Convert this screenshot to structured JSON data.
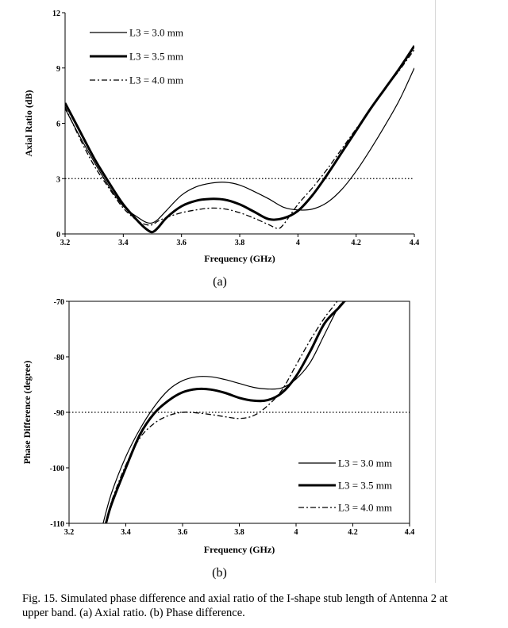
{
  "caption": "Fig. 15.   Simulated phase difference and axial ratio of the I-shape stub length of Antenna 2 at upper band. (a) Axial ratio. (b) Phase difference.",
  "chart_data": [
    {
      "type": "line",
      "sublabel": "(a)",
      "xlabel": "Frequency (GHz)",
      "ylabel": "Axial Ratio (dB)",
      "xlim": [
        3.2,
        4.4
      ],
      "ylim": [
        0,
        12
      ],
      "xticks": [
        3.2,
        3.4,
        3.6,
        3.8,
        4,
        4.2,
        4.4
      ],
      "xtick_labels": [
        "3.2",
        "3.4",
        "3.6",
        "3.8",
        "4",
        "4.2",
        "4.4"
      ],
      "yticks": [
        0,
        3,
        6,
        9,
        12
      ],
      "ytick_labels": [
        "0",
        "3",
        "6",
        "9",
        "12"
      ],
      "reference_line": {
        "y": 3,
        "style": "dotted"
      },
      "legend_position": "top-left",
      "series": [
        {
          "name": "L3 = 3.0 mm",
          "style": "thin",
          "x": [
            3.2,
            3.25,
            3.3,
            3.35,
            3.4,
            3.45,
            3.48,
            3.5,
            3.52,
            3.55,
            3.6,
            3.65,
            3.7,
            3.75,
            3.8,
            3.85,
            3.9,
            3.95,
            4.0,
            4.05,
            4.1,
            4.15,
            4.2,
            4.25,
            4.3,
            4.35,
            4.4
          ],
          "y": [
            6.8,
            5.3,
            3.9,
            2.6,
            1.5,
            0.9,
            0.62,
            0.6,
            0.8,
            1.3,
            2.1,
            2.55,
            2.75,
            2.8,
            2.65,
            2.3,
            1.9,
            1.45,
            1.3,
            1.35,
            1.7,
            2.4,
            3.4,
            4.6,
            5.9,
            7.3,
            9.0
          ]
        },
        {
          "name": "L3 = 3.5 mm",
          "style": "thick",
          "x": [
            3.2,
            3.25,
            3.3,
            3.35,
            3.4,
            3.45,
            3.48,
            3.5,
            3.52,
            3.55,
            3.6,
            3.65,
            3.7,
            3.75,
            3.8,
            3.85,
            3.9,
            3.95,
            4.0,
            4.05,
            4.1,
            4.15,
            4.2,
            4.25,
            4.3,
            4.35,
            4.4
          ],
          "y": [
            7.1,
            5.6,
            4.1,
            2.8,
            1.6,
            0.7,
            0.25,
            0.1,
            0.35,
            0.9,
            1.5,
            1.8,
            1.9,
            1.85,
            1.6,
            1.2,
            0.8,
            0.85,
            1.25,
            2.1,
            3.2,
            4.4,
            5.6,
            6.8,
            7.9,
            9.0,
            10.2
          ]
        },
        {
          "name": "L3 = 4.0 mm",
          "style": "dashdot",
          "x": [
            3.2,
            3.25,
            3.3,
            3.35,
            3.4,
            3.45,
            3.48,
            3.5,
            3.52,
            3.55,
            3.6,
            3.65,
            3.7,
            3.75,
            3.8,
            3.85,
            3.9,
            3.93,
            3.95,
            4.0,
            4.05,
            4.1,
            4.15,
            4.2,
            4.25,
            4.3,
            4.35,
            4.4
          ],
          "y": [
            6.9,
            5.2,
            3.7,
            2.5,
            1.4,
            0.7,
            0.5,
            0.5,
            0.7,
            0.9,
            1.15,
            1.3,
            1.4,
            1.35,
            1.15,
            0.85,
            0.5,
            0.3,
            0.5,
            1.6,
            2.5,
            3.5,
            4.6,
            5.7,
            6.8,
            7.9,
            8.9,
            10.0
          ]
        }
      ]
    },
    {
      "type": "line",
      "sublabel": "(b)",
      "xlabel": "Frequency (GHz)",
      "ylabel": "Phase Difference (degree)",
      "xlim": [
        3.2,
        4.4
      ],
      "ylim": [
        -110,
        -70
      ],
      "xticks": [
        3.2,
        3.4,
        3.6,
        3.8,
        4,
        4.2,
        4.4
      ],
      "xtick_labels": [
        "3.2",
        "3.4",
        "3.6",
        "3.8",
        "4",
        "4.2",
        "4.4"
      ],
      "yticks": [
        -110,
        -100,
        -90,
        -80,
        -70
      ],
      "ytick_labels": [
        "-110",
        "-100",
        "-90",
        "-80",
        "-70"
      ],
      "reference_line": {
        "y": -90,
        "style": "dotted"
      },
      "legend_position": "bottom-right",
      "series": [
        {
          "name": "L3 = 3.0 mm",
          "style": "thin",
          "x": [
            3.32,
            3.35,
            3.4,
            3.45,
            3.5,
            3.55,
            3.6,
            3.65,
            3.7,
            3.75,
            3.8,
            3.85,
            3.9,
            3.95,
            4.0,
            4.05,
            4.1,
            4.15,
            4.175
          ],
          "y": [
            -110,
            -104.5,
            -98.0,
            -93.0,
            -89.0,
            -86.0,
            -84.3,
            -83.6,
            -83.6,
            -84.1,
            -84.8,
            -85.5,
            -85.8,
            -85.6,
            -84.0,
            -81.0,
            -76.0,
            -71.0,
            -70
          ]
        },
        {
          "name": "L3 = 3.5 mm",
          "style": "thick",
          "x": [
            3.33,
            3.35,
            3.4,
            3.45,
            3.5,
            3.55,
            3.6,
            3.65,
            3.7,
            3.75,
            3.8,
            3.85,
            3.9,
            3.95,
            4.0,
            4.05,
            4.1,
            4.15,
            4.17
          ],
          "y": [
            -110,
            -106.5,
            -100.0,
            -94.0,
            -90.2,
            -87.9,
            -86.4,
            -85.8,
            -85.9,
            -86.5,
            -87.4,
            -87.9,
            -87.8,
            -86.5,
            -83.5,
            -79.0,
            -74.0,
            -71.2,
            -70
          ]
        },
        {
          "name": "L3 = 4.0 mm",
          "style": "dashdot",
          "x": [
            3.33,
            3.35,
            3.4,
            3.45,
            3.5,
            3.55,
            3.6,
            3.65,
            3.7,
            3.75,
            3.8,
            3.85,
            3.9,
            3.95,
            4.0,
            4.05,
            4.1,
            4.13,
            4.145
          ],
          "y": [
            -110,
            -106.0,
            -99.5,
            -94.6,
            -92.0,
            -90.6,
            -90.0,
            -90.1,
            -90.4,
            -90.8,
            -91.1,
            -90.6,
            -88.8,
            -86.0,
            -81.5,
            -77.0,
            -73.0,
            -71.0,
            -70
          ]
        }
      ]
    }
  ]
}
